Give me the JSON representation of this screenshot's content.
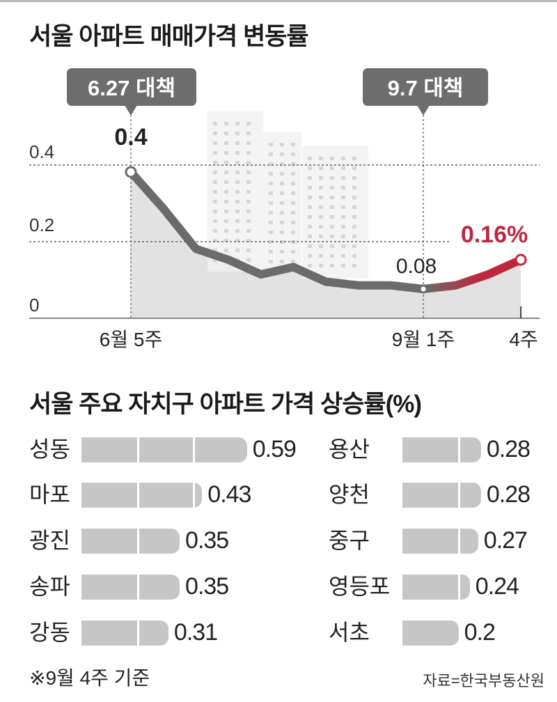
{
  "chart_data": [
    {
      "type": "line",
      "title": "서울 아파트 매매가격 변동률",
      "ylim": [
        0,
        0.45
      ],
      "y_ticks": [
        "0",
        "0.2",
        "0.4"
      ],
      "y_tick_values": [
        0,
        0.2,
        0.4
      ],
      "values": [
        0.4,
        0.3,
        0.19,
        0.16,
        0.12,
        0.14,
        0.1,
        0.09,
        0.09,
        0.08,
        0.09,
        0.12,
        0.16
      ],
      "x_tick_labels": [
        {
          "index": 0,
          "label": "6월 5주"
        },
        {
          "index": 9,
          "label": "9월 1주"
        },
        {
          "index": 12,
          "label": "4주"
        }
      ],
      "data_labels": [
        {
          "index": 0,
          "label": "0.4"
        },
        {
          "index": 9,
          "label": "0.08"
        },
        {
          "index": 12,
          "label": "0.16%"
        }
      ],
      "annotations": [
        {
          "index": 0,
          "label": "6.27 대책"
        },
        {
          "index": 9,
          "label": "9.7 대책"
        }
      ],
      "grid": "dashed at 0.2 and 0.4",
      "colors": {
        "line": "#6b6b6b",
        "highlight": "#c0263d",
        "area": "#e2e2e2",
        "callout": "#6d6d6d"
      }
    },
    {
      "type": "bar",
      "orientation": "horizontal",
      "title": "서울 주요 자치구 아파트 가격 상승률(%)",
      "categories": [
        "성동",
        "마포",
        "광진",
        "송파",
        "강동",
        "용산",
        "양천",
        "중구",
        "영등포",
        "서초"
      ],
      "values": [
        0.59,
        0.43,
        0.35,
        0.35,
        0.31,
        0.28,
        0.28,
        0.27,
        0.24,
        0.2
      ],
      "value_labels": [
        "0.59",
        "0.43",
        "0.35",
        "0.35",
        "0.31",
        "0.28",
        "0.28",
        "0.27",
        "0.24",
        "0.2"
      ],
      "colors": {
        "bar": "#c6c6c6"
      }
    }
  ],
  "footer": {
    "note": "※9월 4주 기준",
    "source": "자료=한국부동산원"
  }
}
